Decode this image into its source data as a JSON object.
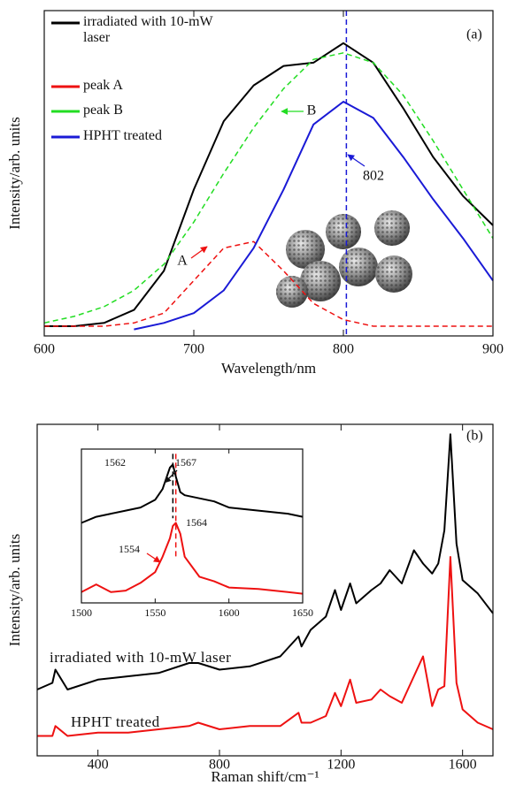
{
  "chart_data": [
    {
      "type": "line",
      "xlabel": "Wavelength/nm",
      "ylabel": "Intensity/arb. units",
      "x": [
        600,
        620,
        640,
        660,
        680,
        700,
        720,
        740,
        760,
        780,
        800,
        820,
        840,
        860,
        880,
        900
      ],
      "series": [
        {
          "name": "irradiated with 10-mW laser",
          "color": "#000000",
          "dash": false,
          "values": [
            0.03,
            0.03,
            0.04,
            0.08,
            0.2,
            0.45,
            0.66,
            0.77,
            0.83,
            0.84,
            0.9,
            0.84,
            0.7,
            0.55,
            0.43,
            0.34
          ]
        },
        {
          "name": "peak A",
          "color": "#ee1111",
          "dash": true,
          "values": [
            0.03,
            0.03,
            0.03,
            0.04,
            0.07,
            0.17,
            0.27,
            0.29,
            0.2,
            0.1,
            0.05,
            0.03,
            0.03,
            0.03,
            0.03,
            0.03
          ]
        },
        {
          "name": "peak B",
          "color": "#22dd22",
          "dash": true,
          "values": [
            0.04,
            0.06,
            0.09,
            0.14,
            0.22,
            0.35,
            0.5,
            0.64,
            0.76,
            0.85,
            0.87,
            0.84,
            0.74,
            0.6,
            0.45,
            0.3
          ]
        },
        {
          "name": "HPHT treated",
          "color": "#1a1ad6",
          "dash": false,
          "values": [
            null,
            null,
            null,
            0.02,
            0.04,
            0.07,
            0.14,
            0.27,
            0.45,
            0.65,
            0.72,
            0.67,
            0.55,
            0.42,
            0.3,
            0.17
          ]
        }
      ],
      "xlim": [
        600,
        900
      ],
      "xticks": [
        600,
        700,
        800,
        900
      ],
      "ylim": [
        0,
        1
      ],
      "vlines": [
        {
          "x": 802,
          "color": "#1a1ad6"
        }
      ],
      "annotations": [
        "(a)",
        "A",
        "B",
        "802"
      ],
      "legend": true
    },
    {
      "type": "line",
      "xlabel": "Raman shift/cm⁻¹",
      "ylabel": "Intensity/arb. units",
      "x": [
        200,
        250,
        260,
        300,
        400,
        500,
        600,
        700,
        730,
        800,
        900,
        1000,
        1060,
        1070,
        1100,
        1150,
        1180,
        1200,
        1230,
        1250,
        1300,
        1330,
        1360,
        1400,
        1440,
        1470,
        1500,
        1520,
        1540,
        1560,
        1580,
        1600,
        1650,
        1700
      ],
      "series": [
        {
          "name": "irradiated with 10-mW laser",
          "color": "#000000",
          "dash": false,
          "values": [
            0.2,
            0.22,
            0.26,
            0.2,
            0.23,
            0.24,
            0.25,
            0.28,
            0.28,
            0.26,
            0.27,
            0.3,
            0.36,
            0.33,
            0.38,
            0.42,
            0.5,
            0.44,
            0.52,
            0.46,
            0.5,
            0.52,
            0.56,
            0.52,
            0.62,
            0.58,
            0.55,
            0.58,
            0.68,
            0.97,
            0.64,
            0.53,
            0.49,
            0.43
          ]
        },
        {
          "name": "HPHT treated",
          "color": "#ee1111",
          "dash": false,
          "values": [
            0.06,
            0.06,
            0.09,
            0.06,
            0.07,
            0.07,
            0.08,
            0.09,
            0.1,
            0.08,
            0.09,
            0.09,
            0.13,
            0.1,
            0.1,
            0.12,
            0.19,
            0.15,
            0.23,
            0.16,
            0.17,
            0.2,
            0.18,
            0.16,
            0.24,
            0.3,
            0.15,
            0.2,
            0.21,
            0.6,
            0.22,
            0.14,
            0.1,
            0.08
          ]
        }
      ],
      "xlim": [
        200,
        1700
      ],
      "xticks": [
        400,
        800,
        1200,
        1600
      ],
      "ylim": [
        0,
        1
      ],
      "annotations": [
        "(b)"
      ],
      "legend": false
    },
    {
      "type": "line",
      "x": [
        1500,
        1510,
        1520,
        1530,
        1540,
        1550,
        1555,
        1560,
        1562,
        1564,
        1567,
        1570,
        1580,
        1590,
        1600,
        1620,
        1640,
        1650
      ],
      "series": [
        {
          "color": "#000000",
          "dash": false,
          "values": [
            0.52,
            0.56,
            0.58,
            0.6,
            0.62,
            0.67,
            0.74,
            0.88,
            0.9,
            0.82,
            0.72,
            0.7,
            0.68,
            0.66,
            0.62,
            0.6,
            0.58,
            0.56
          ]
        },
        {
          "color": "#ee1111",
          "dash": false,
          "values": [
            0.07,
            0.12,
            0.07,
            0.08,
            0.13,
            0.2,
            0.3,
            0.42,
            0.5,
            0.52,
            0.45,
            0.3,
            0.17,
            0.14,
            0.1,
            0.09,
            0.07,
            0.06
          ]
        }
      ],
      "xlim": [
        1500,
        1650
      ],
      "xticks": [
        1500,
        1550,
        1600,
        1650
      ],
      "ylim": [
        0,
        1
      ],
      "vlines": [
        {
          "x": 1562,
          "color": "#000000"
        },
        {
          "x": 1564,
          "color": "#ee1111"
        }
      ],
      "annotations": [
        "1562",
        "1567",
        "1564",
        "1554"
      ],
      "legend": false
    }
  ]
}
